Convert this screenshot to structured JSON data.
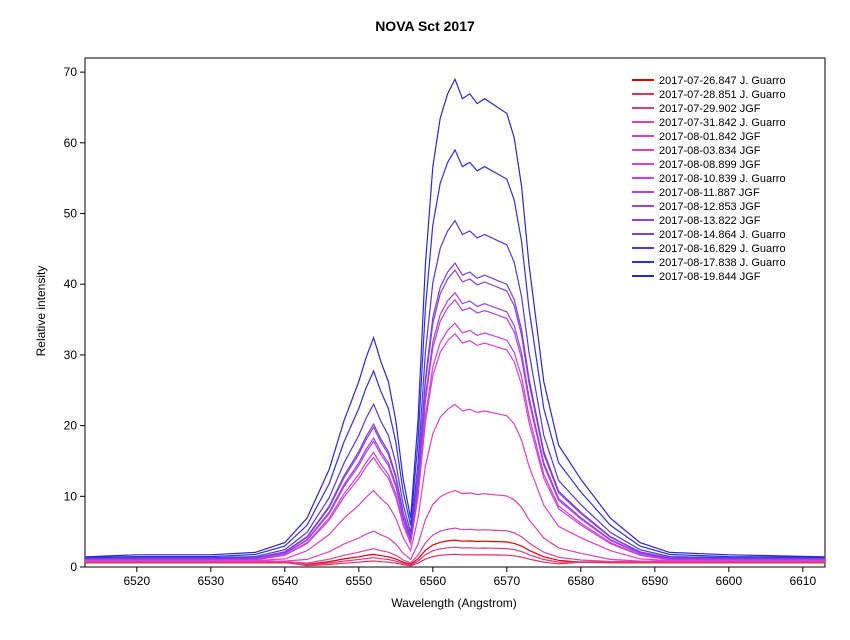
{
  "chart_data": {
    "type": "line",
    "title": "NOVA Sct 2017",
    "xlabel": "Wavelength (Angstrom)",
    "ylabel": "Relative intensity",
    "xlim": [
      6513,
      6613
    ],
    "ylim": [
      0,
      72
    ],
    "xticks": [
      6520,
      6530,
      6540,
      6550,
      6560,
      6570,
      6580,
      6590,
      6600,
      6610
    ],
    "yticks": [
      0,
      10,
      20,
      30,
      40,
      50,
      60,
      70
    ],
    "grid": false,
    "legend_position": "top-right",
    "x": [
      6513,
      6520,
      6530,
      6536,
      6540,
      6543,
      6546,
      6548,
      6550,
      6551,
      6552,
      6553,
      6554,
      6555,
      6556,
      6557,
      6558,
      6559,
      6560,
      6561,
      6562,
      6563,
      6564,
      6565,
      6566,
      6567,
      6568,
      6569,
      6570,
      6571,
      6572,
      6573,
      6574,
      6575,
      6577,
      6580,
      6584,
      6588,
      6592,
      6600,
      6613
    ],
    "series": [
      {
        "name": "2017-07-26.847  J. Guarro",
        "color": "#e00000",
        "peak": 3.8
      },
      {
        "name": "2017-07-28.851  J. Guarro",
        "color": "#e0305c",
        "peak": 1.8
      },
      {
        "name": "2017-07-29.902  JGF",
        "color": "#e03c7c",
        "peak": 2.8
      },
      {
        "name": "2017-07-31.842  J. Guarro",
        "color": "#e040a0",
        "peak": 5.5
      },
      {
        "name": "2017-08-01.842  JGF",
        "color": "#e040b4",
        "peak": 10.8
      },
      {
        "name": "2017-08-03.834  JGF",
        "color": "#e040c8",
        "peak": 23
      },
      {
        "name": "2017-08-08.899  JGF",
        "color": "#d840d8",
        "peak": 33
      },
      {
        "name": "2017-08-10.839  J. Guarro",
        "color": "#c840e0",
        "peak": 34.5
      },
      {
        "name": "2017-08-11.887  JGF",
        "color": "#b440e0",
        "peak": 37.8
      },
      {
        "name": "2017-08-12.853  JGF",
        "color": "#a040e0",
        "peak": 38.8
      },
      {
        "name": "2017-08-13.822  JGF",
        "color": "#8c40e0",
        "peak": 42
      },
      {
        "name": "2017-08-14.864  J. Guarro",
        "color": "#7840e0",
        "peak": 43
      },
      {
        "name": "2017-08-16.829  J. Guarro",
        "color": "#5038e0",
        "peak": 49
      },
      {
        "name": "2017-08-17.838  J. Guarro",
        "color": "#3030e0",
        "peak": 59
      },
      {
        "name": "2017-08-19.844  JGF",
        "color": "#2828d0",
        "peak": 69
      }
    ],
    "profile_shape": [
      0.02,
      0.025,
      0.025,
      0.03,
      0.05,
      0.1,
      0.2,
      0.3,
      0.38,
      0.43,
      0.47,
      0.42,
      0.38,
      0.3,
      0.18,
      0.1,
      0.3,
      0.62,
      0.82,
      0.92,
      0.97,
      1.0,
      0.96,
      0.97,
      0.95,
      0.96,
      0.95,
      0.94,
      0.93,
      0.88,
      0.78,
      0.62,
      0.5,
      0.38,
      0.25,
      0.18,
      0.1,
      0.05,
      0.03,
      0.025,
      0.02
    ]
  }
}
